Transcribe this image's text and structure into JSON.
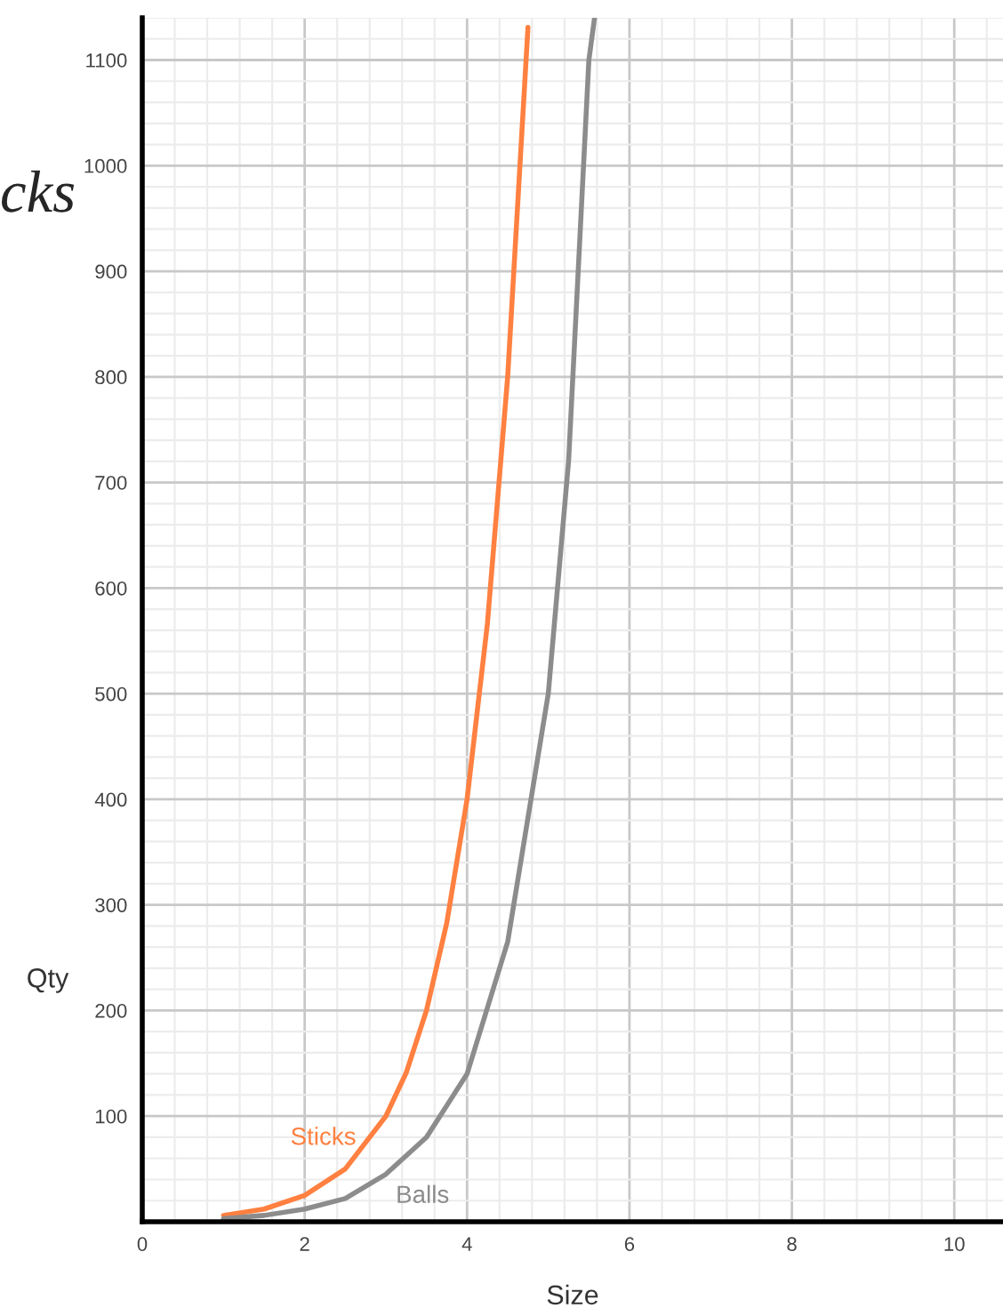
{
  "chart_data": {
    "type": "line",
    "title": "cks",
    "xlabel": "Size",
    "ylabel": "Qty",
    "series": [
      {
        "name": "Sticks",
        "color": "#ff8040",
        "x": [
          1,
          1.5,
          2,
          2.5,
          3,
          3.25,
          3.5,
          3.75,
          4,
          4.25,
          4.5,
          4.75
        ],
        "values": [
          6,
          12,
          25,
          50,
          100,
          141,
          200,
          283,
          400,
          566,
          800,
          1131
        ]
      },
      {
        "name": "Balls",
        "color": "#8c8c8c",
        "x": [
          1,
          1.5,
          2,
          2.5,
          3,
          3.5,
          4,
          4.5,
          5,
          5.25,
          5.5,
          5.57
        ],
        "values": [
          3,
          6,
          12,
          22,
          45,
          80,
          140,
          265,
          500,
          720,
          1100,
          1140
        ]
      }
    ],
    "xlim": [
      0,
      10.6
    ],
    "ylim": [
      0,
      1140
    ],
    "xticks": [
      0,
      2,
      4,
      6,
      8,
      10
    ],
    "yticks": [
      100,
      200,
      300,
      400,
      500,
      600,
      700,
      800,
      900,
      1000,
      1100
    ],
    "grid": true,
    "legend": false,
    "marker": "none",
    "line_style": "solid"
  }
}
